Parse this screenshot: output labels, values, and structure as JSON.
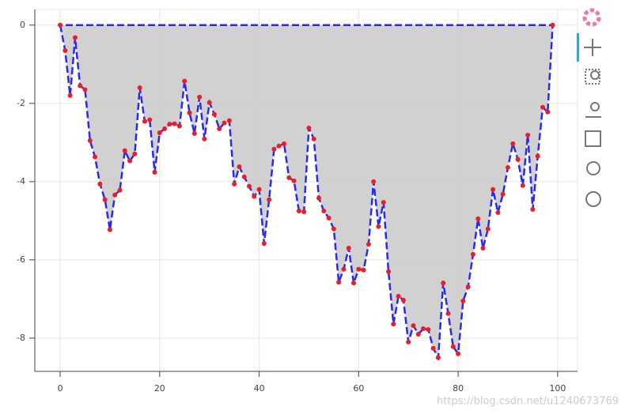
{
  "chart_data": {
    "type": "area-line",
    "x": [
      0,
      1,
      2,
      3,
      4,
      5,
      6,
      7,
      8,
      9,
      10,
      11,
      12,
      13,
      14,
      15,
      16,
      17,
      18,
      19,
      20,
      21,
      22,
      23,
      24,
      25,
      26,
      27,
      28,
      29,
      30,
      31,
      32,
      33,
      34,
      35,
      36,
      37,
      38,
      39,
      40,
      41,
      42,
      43,
      44,
      45,
      46,
      47,
      48,
      49,
      50,
      51,
      52,
      53,
      54,
      55,
      56,
      57,
      58,
      59,
      60,
      61,
      62,
      63,
      64,
      65,
      66,
      67,
      68,
      69,
      70,
      71,
      72,
      73,
      74,
      75,
      76,
      77,
      78,
      79,
      80,
      81,
      82,
      83,
      84,
      85,
      86,
      87,
      88,
      89,
      90,
      91,
      92,
      93,
      94,
      95,
      96,
      97,
      98,
      99
    ],
    "series": [
      {
        "color": "#2a2aee",
        "marker_color": "#ee1c24",
        "fill": "#cccccc",
        "values": [
          0,
          -0.65,
          -1.8,
          -0.32,
          -1.55,
          -1.65,
          -2.95,
          -3.37,
          -4.06,
          -4.46,
          -5.23,
          -4.34,
          -4.22,
          -3.21,
          -3.47,
          -3.29,
          -1.6,
          -2.46,
          -2.42,
          -3.76,
          -2.75,
          -2.65,
          -2.53,
          -2.52,
          -2.58,
          -1.43,
          -2.24,
          -2.77,
          -1.84,
          -2.91,
          -1.98,
          -2.28,
          -2.65,
          -2.5,
          -2.44,
          -4.06,
          -3.62,
          -3.88,
          -4.12,
          -4.38,
          -4.2,
          -5.58,
          -4.46,
          -3.17,
          -3.09,
          -3.03,
          -3.9,
          -3.98,
          -4.75,
          -4.77,
          -2.63,
          -2.91,
          -4.42,
          -4.75,
          -4.93,
          -5.21,
          -6.57,
          -6.24,
          -5.7,
          -6.59,
          -6.24,
          -6.26,
          -5.6,
          -4.0,
          -5.15,
          -4.53,
          -6.3,
          -7.64,
          -6.93,
          -7.03,
          -8.1,
          -7.68,
          -7.9,
          -7.76,
          -7.78,
          -8.26,
          -8.5,
          -6.59,
          -7.37,
          -8.22,
          -8.4,
          -7.05,
          -6.69,
          -5.86,
          -4.95,
          -5.7,
          -5.21,
          -4.2,
          -4.79,
          -4.32,
          -3.64,
          -3.03,
          -3.43,
          -4.1,
          -2.81,
          -4.71,
          -3.35,
          -2.1,
          -2.22,
          0
        ]
      }
    ],
    "xlim": [
      -5.1,
      104
    ],
    "ylim": [
      -8.85,
      0.4
    ],
    "xticks": [
      0,
      20,
      40,
      60,
      80,
      100
    ],
    "yticks": [
      0,
      -2,
      -4,
      -6,
      -8
    ],
    "grid": true,
    "watermark": "https://blog.csdn.net/u1240673769"
  }
}
